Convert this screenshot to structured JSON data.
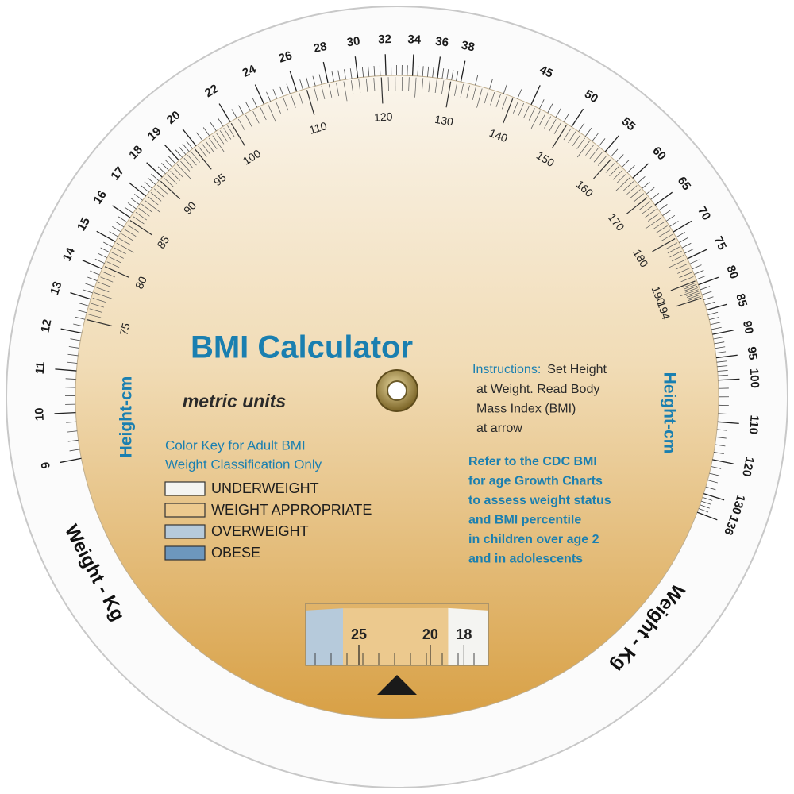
{
  "title": "BMI Calculator",
  "subtitle": "metric units",
  "color_key": {
    "heading": [
      "Color Key for Adult BMI",
      "Weight Classification Only"
    ],
    "items": [
      {
        "label": "UNDERWEIGHT",
        "color": "#f4f4f1"
      },
      {
        "label": "WEIGHT APPROPRIATE",
        "color": "#ecc98e"
      },
      {
        "label": "OVERWEIGHT",
        "color": "#b6cadb"
      },
      {
        "label": "OBESE",
        "color": "#6d97bd"
      }
    ]
  },
  "instructions": {
    "label": "Instructions:",
    "lines": [
      "Set Height",
      "at Weight. Read Body",
      "Mass Index (BMI)",
      "at arrow"
    ]
  },
  "cdc_note": [
    "Refer to the CDC BMI",
    "for age Growth Charts",
    "to assess weight status",
    "and BMI percentile",
    "in children over age 2",
    "and in adolescents"
  ],
  "weight_axis_labels": [
    "Weight - Kg",
    "Weight - Kg"
  ],
  "height_axis_labels": [
    "Height-cm",
    "Height-cm"
  ],
  "weight_scale": [
    9,
    10,
    11,
    12,
    13,
    14,
    15,
    16,
    17,
    18,
    19,
    20,
    22,
    24,
    26,
    28,
    30,
    32,
    34,
    36,
    38,
    45,
    50,
    55,
    60,
    65,
    70,
    75,
    80,
    85,
    90,
    95,
    100,
    110,
    120,
    130,
    136
  ],
  "height_scale": [
    75,
    80,
    85,
    90,
    95,
    100,
    110,
    120,
    130,
    140,
    150,
    160,
    170,
    180,
    190,
    194
  ],
  "bmi_window": {
    "labels": [
      25,
      20,
      18
    ]
  }
}
